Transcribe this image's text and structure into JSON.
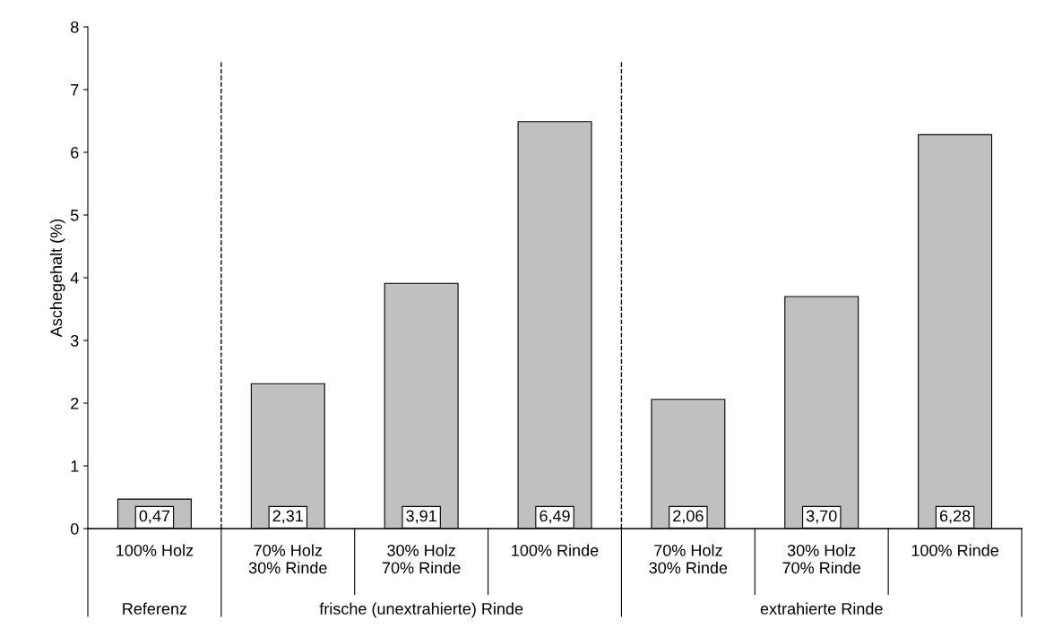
{
  "chart_data": {
    "type": "bar",
    "ylabel": "Aschegehalt (%)",
    "categories": [
      "100% Holz",
      "70% Holz\n30% Rinde",
      "30% Holz\n70% Rinde",
      "100% Rinde",
      "70% Holz\n30% Rinde",
      "30% Holz\n70% Rinde",
      "100% Rinde"
    ],
    "values": [
      0.47,
      2.31,
      3.91,
      6.49,
      2.06,
      3.7,
      6.28
    ],
    "value_labels": [
      "0,47",
      "2,31",
      "3,91",
      "6,49",
      "2,06",
      "3,70",
      "6,28"
    ],
    "color": "#c0c0c0",
    "ylim": [
      0,
      8
    ],
    "yticks": [
      0,
      1,
      2,
      3,
      4,
      5,
      6,
      7,
      8
    ],
    "annotations": [
      "Referenz",
      "frische (unextrahierte) Rinde",
      "extrahierte Rinde"
    ],
    "grid": false,
    "legend": false
  }
}
